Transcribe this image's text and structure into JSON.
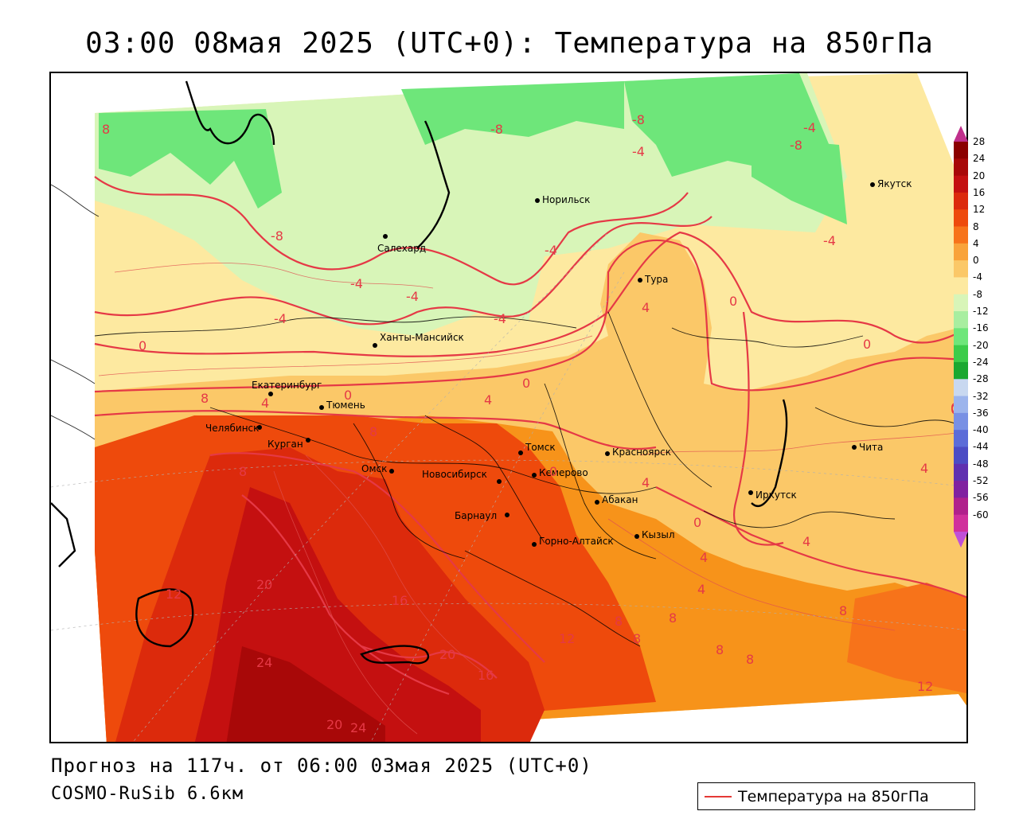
{
  "header": {
    "title": "03:00 08мая 2025 (UTC+0): Температура на 850гПа"
  },
  "footer": {
    "forecast": "Прогноз на 117ч. от 06:00 03мая 2025 (UTC+0)",
    "model": "COSMO-RuSib 6.6км"
  },
  "legend": {
    "label": "Температура на 850гПа",
    "line_color": "#e53935"
  },
  "colorbar": {
    "ticks": [
      "28",
      "24",
      "20",
      "16",
      "12",
      "8",
      "4",
      "0",
      "-4",
      "-8",
      "-12",
      "-16",
      "-20",
      "-24",
      "-28",
      "-32",
      "-36",
      "-40",
      "-44",
      "-48",
      "-52",
      "-56",
      "-60"
    ],
    "colors": [
      "#8b0000",
      "#a80808",
      "#c41010",
      "#dc2a0c",
      "#ee4a0c",
      "#f7731a",
      "#f9a33a",
      "#fbc868",
      "#fde9a0",
      "#d8f5b8",
      "#a8eea0",
      "#6ee67a",
      "#3ccc4a",
      "#1aa830",
      "#c8d8f0",
      "#9cb4ec",
      "#7890e4",
      "#5c6cd8",
      "#4c4cc4",
      "#6030b0",
      "#8020a0",
      "#b0208c",
      "#d0309c"
    ]
  },
  "cities": [
    {
      "name": "Норильск"
    },
    {
      "name": "Якутск"
    },
    {
      "name": "Салехард"
    },
    {
      "name": "Тура"
    },
    {
      "name": "Ханты-Мансийск"
    },
    {
      "name": "Екатеринбург"
    },
    {
      "name": "Тюмень"
    },
    {
      "name": "Челябинск"
    },
    {
      "name": "Курган"
    },
    {
      "name": "Омск"
    },
    {
      "name": "Новосибирск"
    },
    {
      "name": "Томск"
    },
    {
      "name": "Красноярск"
    },
    {
      "name": "Кемерово"
    },
    {
      "name": "Абакан"
    },
    {
      "name": "Барнаул"
    },
    {
      "name": "Горно-Алтайск"
    },
    {
      "name": "Кызыл"
    },
    {
      "name": "Иркутск"
    },
    {
      "name": "Чита"
    }
  ],
  "isotherm_labels": [
    "8",
    "-8",
    "-8",
    "-4",
    "-8",
    "-4",
    "-8",
    "-4",
    "-4",
    "-4",
    "-4",
    "-4",
    "0",
    "0",
    "0",
    "0",
    "0",
    "0",
    "0",
    "8",
    "4",
    "4",
    "8",
    "8",
    "4",
    "4",
    "4",
    "4",
    "4",
    "12",
    "20",
    "20",
    "16",
    "24",
    "20",
    "16",
    "12",
    "8",
    "8",
    "8",
    "8",
    "8",
    "8",
    "12",
    "20",
    "24",
    "0",
    "4",
    "-4",
    "0"
  ]
}
